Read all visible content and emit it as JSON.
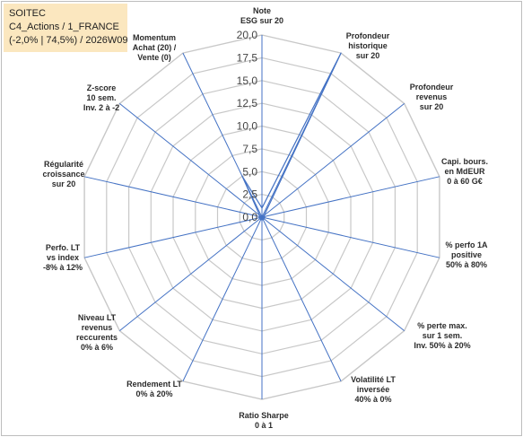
{
  "header": {
    "line1": "SOITEC",
    "line2": "C4_Actions / 1_FRANCE",
    "line3": "(-2,0% | 74,5%) / 2026W09"
  },
  "colors": {
    "title_box_bg": "#fbe7bf",
    "grid": "#c8c8c8",
    "axis": "#4472c4",
    "series": "#4472c4"
  },
  "chart_data": {
    "type": "radar",
    "rmin": 0,
    "rmax": 20,
    "ticks": [
      "0,0",
      "2,5",
      "5,0",
      "7,5",
      "10,0",
      "12,5",
      "15,0",
      "17,5",
      "20,0"
    ],
    "tick_values": [
      0,
      2.5,
      5,
      7.5,
      10,
      12.5,
      15,
      17.5,
      20
    ],
    "axes": [
      {
        "label": [
          "Note",
          "ESG sur 20"
        ],
        "value": 1.0
      },
      {
        "label": [
          "Profondeur",
          "historique",
          "sur 20"
        ],
        "value": 20.0
      },
      {
        "label": [
          "Profondeur",
          "revenus",
          "sur 20"
        ],
        "value": 0.3
      },
      {
        "label": [
          "Capi. bours.",
          "en MdEUR",
          "0 à 60 G€"
        ],
        "value": 0.3
      },
      {
        "label": [
          "% perfo 1A",
          "positive",
          "50% à 80%"
        ],
        "value": 0.3
      },
      {
        "label": [
          "% perte max.",
          "sur 1 sem.",
          "Inv. 50% à 20%"
        ],
        "value": 0.3
      },
      {
        "label": [
          "Volatilité LT",
          "inversée",
          "40% à 0%"
        ],
        "value": 0.3
      },
      {
        "label": [
          "Ratio Sharpe",
          "0 à 1"
        ],
        "value": 0.3
      },
      {
        "label": [
          "Rendement LT",
          "0% à 20%"
        ],
        "value": 0.3
      },
      {
        "label": [
          "Niveau LT",
          "revenus",
          "reccurents",
          "0% à 6%"
        ],
        "value": 0.3
      },
      {
        "label": [
          "Perfo. LT",
          "vs index",
          "-8% à 12%"
        ],
        "value": 0.3
      },
      {
        "label": [
          "Régularité",
          "croissance",
          "sur 20"
        ],
        "value": 0.3
      },
      {
        "label": [
          "Z-score",
          "10 sem.",
          "Inv. 2 à -2"
        ],
        "value": 0.3
      },
      {
        "label": [
          "Momentum",
          "Achat (20) /",
          "Vente (0)"
        ],
        "value": 5.0
      }
    ]
  }
}
